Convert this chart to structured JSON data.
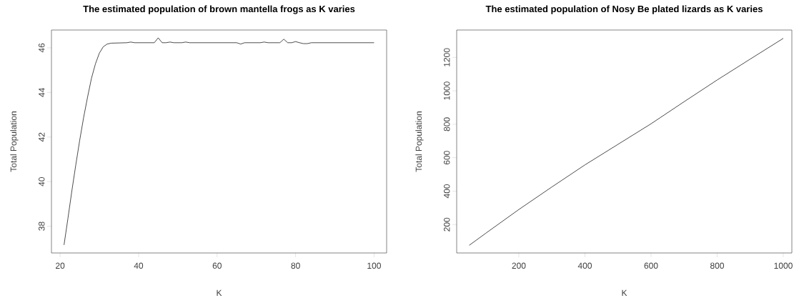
{
  "chart_data": [
    {
      "type": "line",
      "title": "The estimated population of brown mantella frogs as K varies",
      "xlabel": "K",
      "ylabel": "Total Population",
      "x": [
        21,
        22,
        23,
        24,
        25,
        26,
        27,
        28,
        29,
        30,
        31,
        32,
        33,
        37,
        38,
        39,
        44,
        45,
        46,
        47,
        48,
        49,
        51,
        52,
        53,
        65,
        66,
        67,
        71,
        72,
        73,
        76,
        77,
        78,
        79,
        80,
        81,
        82,
        83,
        84,
        100
      ],
      "series": [
        {
          "color": "#000000",
          "values": [
            37.16,
            38.35,
            39.59,
            40.75,
            41.86,
            42.88,
            43.79,
            44.64,
            45.28,
            45.76,
            46.05,
            46.17,
            46.21,
            46.23,
            46.26,
            46.23,
            46.23,
            46.45,
            46.23,
            46.23,
            46.26,
            46.23,
            46.23,
            46.26,
            46.23,
            46.23,
            46.17,
            46.23,
            46.23,
            46.26,
            46.23,
            46.23,
            46.39,
            46.23,
            46.23,
            46.28,
            46.23,
            46.19,
            46.19,
            46.23,
            46.23
          ]
        }
      ],
      "xlim": [
        17.8,
        103.2
      ],
      "ylim": [
        36.8,
        46.8
      ],
      "xticks": [
        20,
        40,
        60,
        80,
        100
      ],
      "yticks": [
        38,
        40,
        42,
        44,
        46
      ]
    },
    {
      "type": "line",
      "title": "The estimated population of Nosy Be plated lizards as K varies",
      "xlabel": "K",
      "ylabel": "Total Population",
      "x": [
        50,
        100,
        200,
        300,
        400,
        500,
        600,
        700,
        800,
        900,
        1000
      ],
      "series": [
        {
          "color": "#000000",
          "values": [
            76,
            148,
            290,
            425,
            557,
            680,
            803,
            935,
            1065,
            1190,
            1314
          ]
        }
      ],
      "xlim": [
        12,
        1026
      ],
      "ylim": [
        30,
        1364
      ],
      "xticks": [
        200,
        400,
        600,
        800,
        1000
      ],
      "yticks": [
        200,
        400,
        600,
        800,
        1000,
        1200
      ]
    }
  ]
}
